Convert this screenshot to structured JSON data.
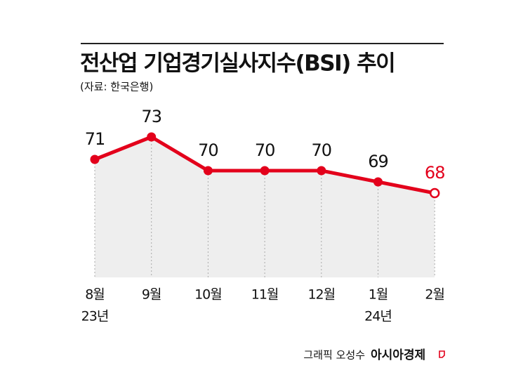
{
  "chart_data": {
    "type": "line",
    "title": "전산업 기업경기실사지수(BSI) 추이",
    "subtitle": "(자료: 한국은행)",
    "categories": [
      "8월",
      "9월",
      "10월",
      "11월",
      "12월",
      "1월",
      "2월"
    ],
    "year_labels": [
      "23년",
      null,
      null,
      null,
      null,
      "24년",
      null
    ],
    "values": [
      71,
      73,
      70,
      70,
      70,
      69,
      68
    ],
    "color": "#e3001b",
    "area_color": "#eeeeee",
    "hollow_last_point": true,
    "ylim": [
      60.5,
      75
    ],
    "credit": "그래픽 오성수",
    "publisher": "아시아경제"
  }
}
